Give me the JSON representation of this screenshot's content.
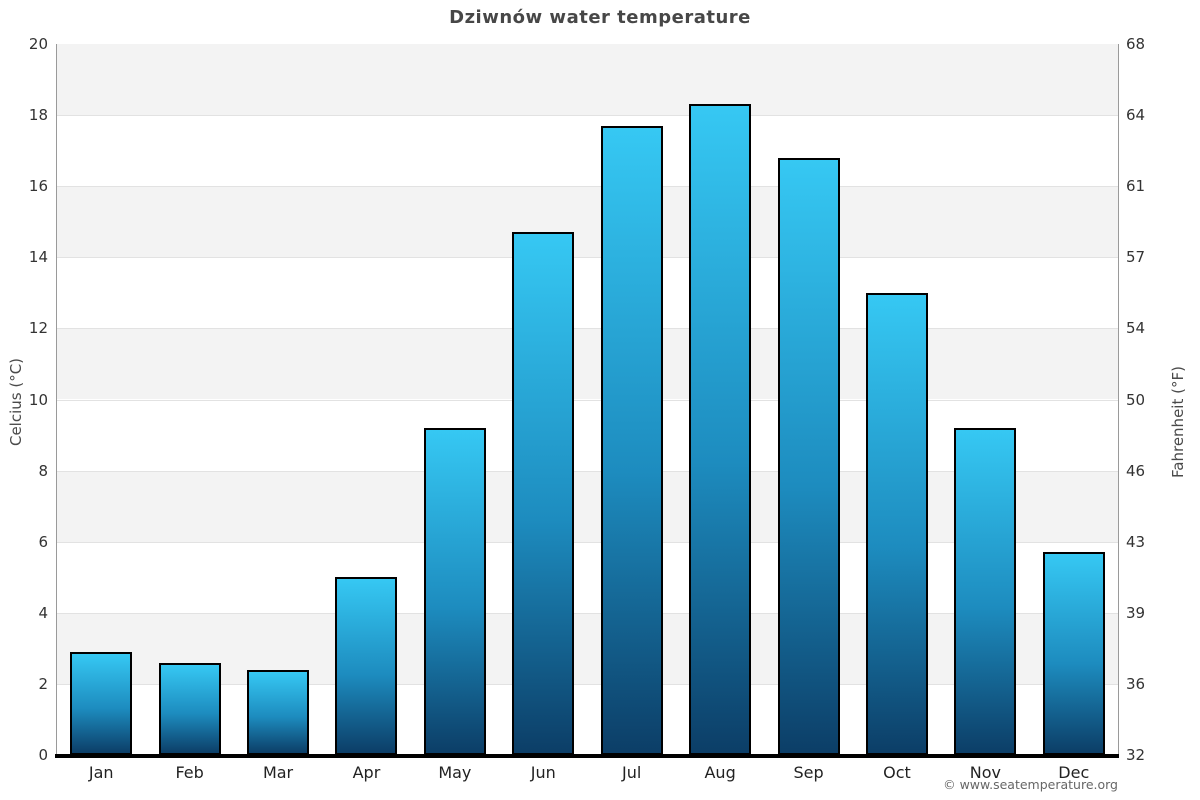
{
  "chart_data": {
    "type": "bar",
    "title": "Dziwnów water temperature",
    "categories": [
      "Jan",
      "Feb",
      "Mar",
      "Apr",
      "May",
      "Jun",
      "Jul",
      "Aug",
      "Sep",
      "Oct",
      "Nov",
      "Dec"
    ],
    "values": [
      2.9,
      2.6,
      2.4,
      5.0,
      9.2,
      14.7,
      17.7,
      18.3,
      16.8,
      13.0,
      9.2,
      5.7
    ],
    "series_name": "Water temperature (°C)",
    "xlabel": "",
    "ylabel_left": "Celcius (°C)",
    "ylabel_right": "Fahrenheit (°F)",
    "ylim": [
      0,
      20
    ],
    "yticks_celsius": [
      0,
      2,
      4,
      6,
      8,
      10,
      12,
      14,
      16,
      18,
      20
    ],
    "yticks_fahrenheit": [
      32,
      36,
      39,
      43,
      46,
      50,
      54,
      57,
      61,
      64,
      68
    ],
    "grid": "alternating horizontal bands, gray on odd intervals from bottom (2-4, 6-8, 10-12, 14-16, 18-20)",
    "legend_position": "none",
    "colors": {
      "bar_gradient_top": "#36c8f3",
      "bar_gradient_mid": "#1d8cbf",
      "bar_gradient_bottom": "#0c3e67",
      "bar_border": "#000000",
      "band_gray": "#f3f3f3",
      "gridline": "#e2e2e2",
      "axis_side": "#9a9a9a",
      "axis_bottom": "#000000",
      "title_text": "#474747",
      "tick_text": "#333333",
      "footer_text": "#666666"
    }
  },
  "footer": {
    "credit": "© www.seatemperature.org"
  }
}
